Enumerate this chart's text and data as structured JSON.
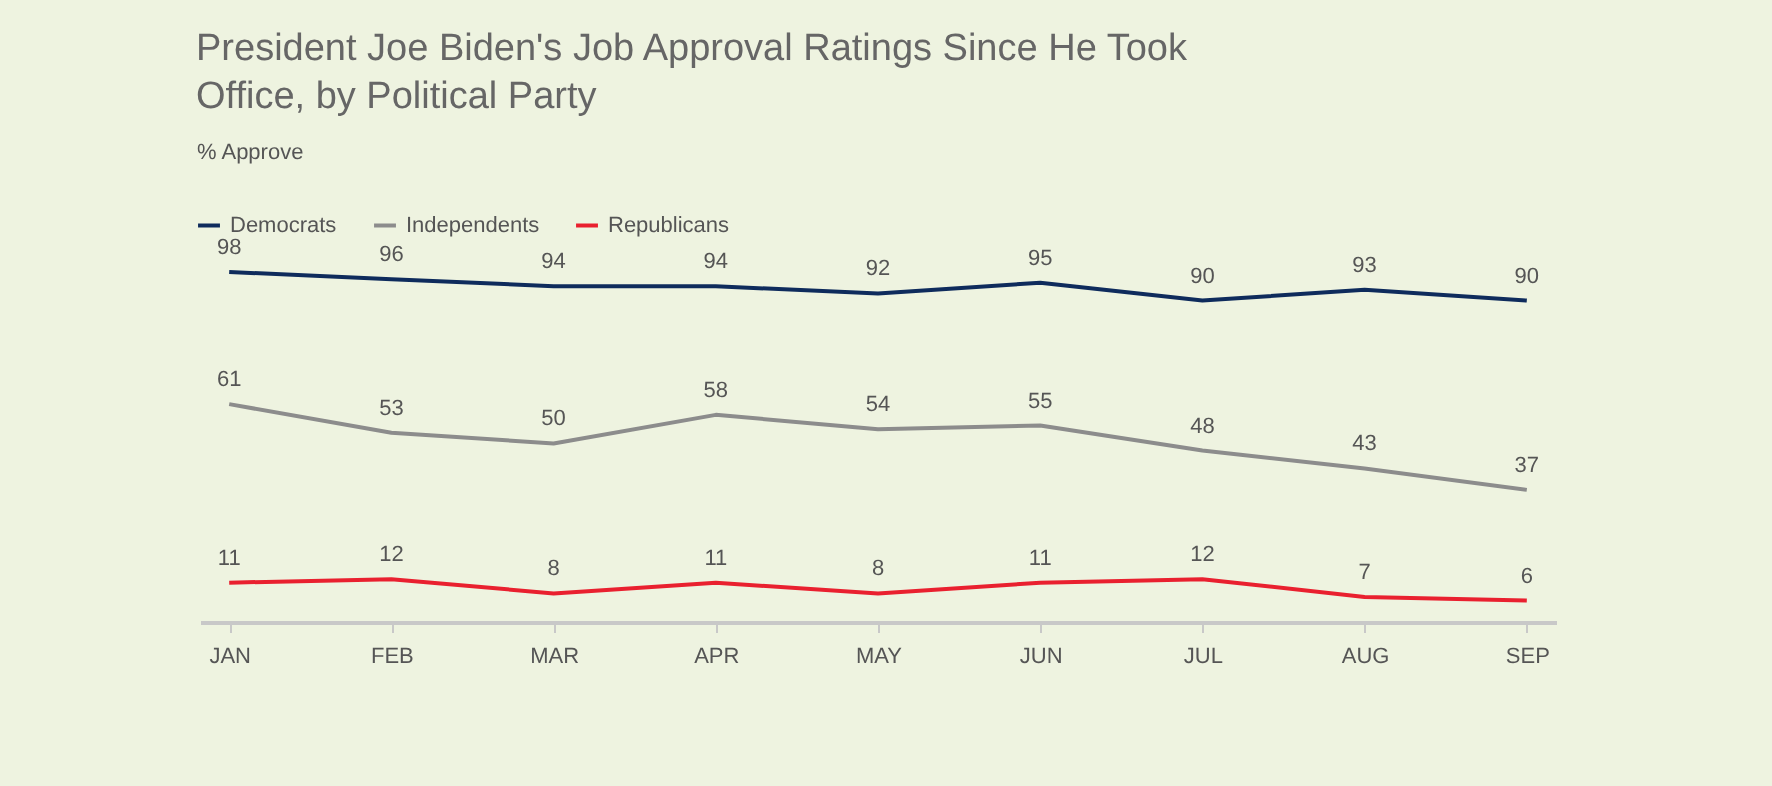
{
  "chart_data": {
    "type": "line",
    "title": "President Joe Biden's Job Approval Ratings Since He Took Office, by Political Party",
    "ylabel": "% Approve",
    "categories": [
      "JAN",
      "FEB",
      "MAR",
      "APR",
      "MAY",
      "JUN",
      "JUL",
      "AUG",
      "SEP"
    ],
    "series": [
      {
        "name": "Democrats",
        "color": "#0e2b5c",
        "values": [
          98,
          96,
          94,
          94,
          92,
          95,
          90,
          93,
          90
        ]
      },
      {
        "name": "Independents",
        "color": "#8c8c8c",
        "values": [
          61,
          53,
          50,
          58,
          54,
          55,
          48,
          43,
          37
        ]
      },
      {
        "name": "Republicans",
        "color": "#e9202f",
        "values": [
          11,
          12,
          8,
          11,
          8,
          11,
          12,
          7,
          6
        ]
      }
    ],
    "tick_labels": "x",
    "legend": "top left",
    "data_labels": true,
    "marker": "none",
    "line_style": "solid"
  }
}
